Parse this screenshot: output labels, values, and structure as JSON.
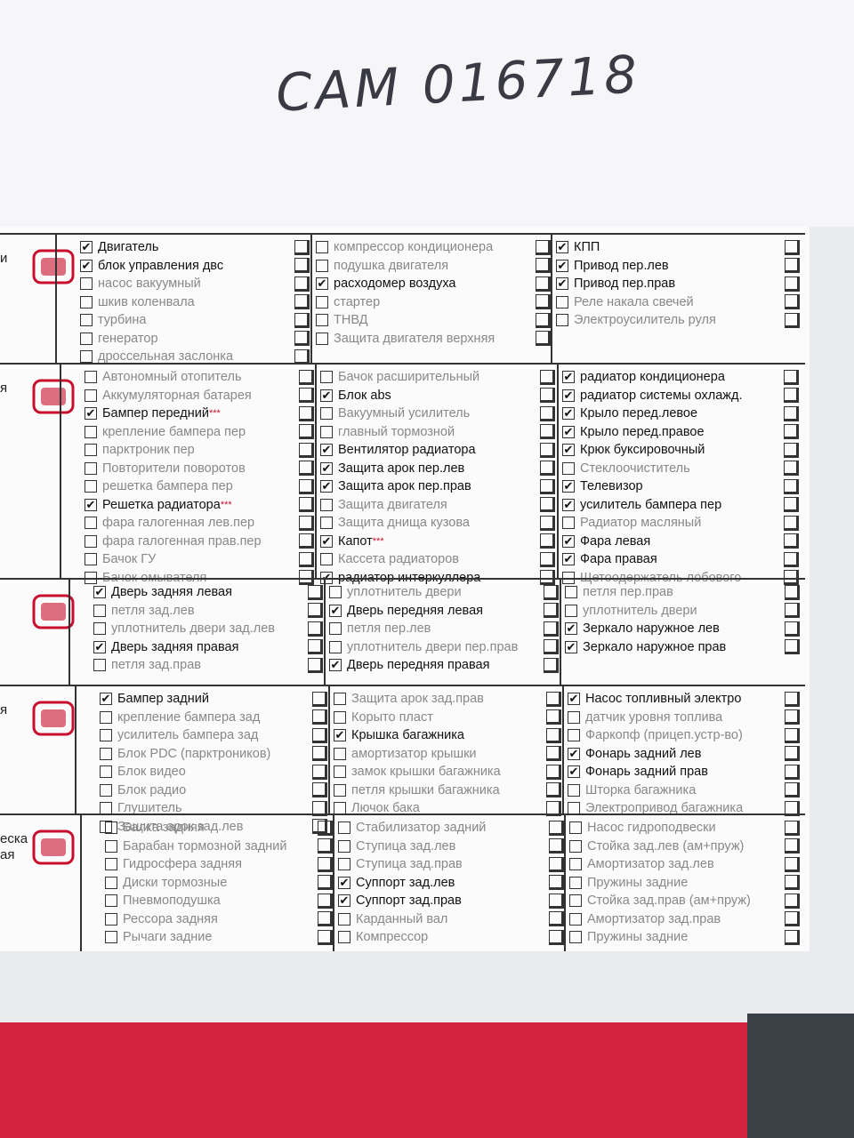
{
  "header": {
    "handwritten": "CAM 016718"
  },
  "sections": [
    {
      "labels": [
        "и"
      ],
      "columns": [
        [
          {
            "text": "Двигатель",
            "checked": true
          },
          {
            "text": "блок управления двс",
            "checked": true
          },
          {
            "text": "насос вакуумный",
            "checked": false
          },
          {
            "text": "шкив коленвала",
            "checked": false
          },
          {
            "text": "турбина",
            "checked": false
          },
          {
            "text": "генератор",
            "checked": false
          },
          {
            "text": "дроссельная заслонка",
            "checked": false
          }
        ],
        [
          {
            "text": "компрессор кондиционера",
            "checked": false
          },
          {
            "text": "подушка двигателя",
            "checked": false
          },
          {
            "text": "расходомер воздуха",
            "checked": true
          },
          {
            "text": "стартер",
            "checked": false
          },
          {
            "text": "ТНВД",
            "checked": false
          },
          {
            "text": "Защита двигателя верхняя",
            "checked": false
          }
        ],
        [
          {
            "text": "КПП",
            "checked": true
          },
          {
            "text": "Привод пер.лев",
            "checked": true
          },
          {
            "text": "Привод пер.прав",
            "checked": true
          },
          {
            "text": "Реле накала свечей",
            "checked": false
          },
          {
            "text": "Электроусилитель руля",
            "checked": false
          }
        ]
      ]
    },
    {
      "labels": [
        "я"
      ],
      "columns": [
        [
          {
            "text": "Автономный отопитель",
            "checked": false
          },
          {
            "text": "Аккумуляторная батарея",
            "checked": false
          },
          {
            "text": "Бампер передний",
            "note": "***",
            "checked": true
          },
          {
            "text": "крепление бампера пер",
            "checked": false
          },
          {
            "text": "парктроник пер",
            "checked": false
          },
          {
            "text": "Повторители поворотов",
            "checked": false
          },
          {
            "text": "решетка бампера пер",
            "checked": false
          },
          {
            "text": "Решетка радиатора",
            "note": "***",
            "checked": true
          },
          {
            "text": "фара галогенная лев.пер",
            "checked": false
          },
          {
            "text": "фара галогенная прав.пер",
            "checked": false
          },
          {
            "text": "Бачок ГУ",
            "checked": false
          },
          {
            "text": "Бачок омывателя",
            "checked": false
          }
        ],
        [
          {
            "text": "Бачок расширительный",
            "checked": false
          },
          {
            "text": "Блок abs",
            "checked": true
          },
          {
            "text": "Вакуумный усилитель",
            "checked": false
          },
          {
            "text": "главный тормозной",
            "checked": false
          },
          {
            "text": "Вентилятор радиатора",
            "checked": true
          },
          {
            "text": "Защита арок пер.лев",
            "checked": true
          },
          {
            "text": "Защита арок пер.прав",
            "checked": true
          },
          {
            "text": "Защита двигателя",
            "checked": false
          },
          {
            "text": "Защита днища кузова",
            "checked": false
          },
          {
            "text": "Капот",
            "note": "***",
            "checked": true
          },
          {
            "text": "Кассета радиаторов",
            "checked": false
          },
          {
            "text": "радиатор интеркуллера",
            "checked": true
          }
        ],
        [
          {
            "text": "радиатор кондиционера",
            "checked": true
          },
          {
            "text": "радиатор системы охлажд.",
            "checked": true
          },
          {
            "text": "Крыло перед.левое",
            "checked": true
          },
          {
            "text": "Крыло перед.правое",
            "checked": true
          },
          {
            "text": "Крюк буксировочный",
            "checked": true
          },
          {
            "text": "Стеклоочиститель",
            "checked": false
          },
          {
            "text": "Телевизор",
            "checked": true
          },
          {
            "text": "усилитель бампера пер",
            "checked": true
          },
          {
            "text": "Радиатор масляный",
            "checked": false
          },
          {
            "text": "Фара левая",
            "checked": true
          },
          {
            "text": "Фара правая",
            "checked": true
          },
          {
            "text": "Щетоодержатель лобового",
            "checked": false
          }
        ]
      ]
    },
    {
      "columns": [
        [
          {
            "text": "Дверь задняя левая",
            "checked": true
          },
          {
            "text": "петля зад.лев",
            "checked": false
          },
          {
            "text": "уплотнитель двери зад.лев",
            "checked": false
          },
          {
            "text": "Дверь задняя правая",
            "checked": true
          },
          {
            "text": "петля зад.прав",
            "checked": false
          }
        ],
        [
          {
            "text": "уплотнитель двери",
            "checked": false
          },
          {
            "text": "Дверь передняя левая",
            "checked": true
          },
          {
            "text": "петля пер.лев",
            "checked": false
          },
          {
            "text": "уплотнитель двери пер.прав",
            "checked": false
          },
          {
            "text": "Дверь передняя правая",
            "checked": true
          }
        ],
        [
          {
            "text": "петля пер.прав",
            "checked": false
          },
          {
            "text": "уплотнитель двери",
            "checked": false
          },
          {
            "text": "Зеркало наружное лев",
            "checked": true
          },
          {
            "text": "Зеркало наружное прав",
            "checked": true
          }
        ]
      ]
    },
    {
      "labels": [
        "я"
      ],
      "columns": [
        [
          {
            "text": "Бампер задний",
            "checked": true
          },
          {
            "text": "крепление бампера зад",
            "checked": false
          },
          {
            "text": "усилитель бампера зад",
            "checked": false
          },
          {
            "text": "Блок PDC (парктроников)",
            "checked": false
          },
          {
            "text": "Блок видео",
            "checked": false
          },
          {
            "text": "Блок радио",
            "checked": false
          },
          {
            "text": "Глушитель",
            "checked": false
          },
          {
            "text": "Защита арок зад.лев",
            "checked": false
          }
        ],
        [
          {
            "text": "Защита арок зад.прав",
            "checked": false
          },
          {
            "text": "Корыто пласт",
            "checked": false
          },
          {
            "text": "Крышка багажника",
            "checked": true
          },
          {
            "text": "амортизатор крышки",
            "checked": false
          },
          {
            "text": "замок крышки багажника",
            "checked": false
          },
          {
            "text": "петля крышки багажника",
            "checked": false
          },
          {
            "text": "Лючок бака",
            "checked": false
          }
        ],
        [
          {
            "text": "Насос топливный электро",
            "checked": true
          },
          {
            "text": "датчик уровня топлива",
            "checked": false
          },
          {
            "text": "Фаркопф (прицеп.устр-во)",
            "checked": false
          },
          {
            "text": "Фонарь задний лев",
            "checked": true
          },
          {
            "text": "Фонарь задний прав",
            "checked": true
          },
          {
            "text": "Шторка багажника",
            "checked": false
          },
          {
            "text": "Электропривод багажника",
            "checked": false
          }
        ]
      ]
    },
    {
      "labels": [
        "еска",
        "ая"
      ],
      "columns": [
        [
          {
            "text": "Балка задняя",
            "checked": false
          },
          {
            "text": "Барабан тормозной задний",
            "checked": false
          },
          {
            "text": "Гидросфера задняя",
            "checked": false
          },
          {
            "text": "Диски тормозные",
            "checked": false
          },
          {
            "text": "Пневмоподушка",
            "checked": false
          },
          {
            "text": "Рессора задняя",
            "checked": false
          },
          {
            "text": "Рычаги задние",
            "checked": false
          }
        ],
        [
          {
            "text": "Стабилизатор задний",
            "checked": false
          },
          {
            "text": "Ступица зад.лев",
            "checked": false
          },
          {
            "text": "Ступица зад.прав",
            "checked": false
          },
          {
            "text": "Суппорт зад.лев",
            "checked": true
          },
          {
            "text": "Суппорт зад.прав",
            "checked": true
          },
          {
            "text": "Карданный вал",
            "checked": false
          },
          {
            "text": "Компрессор",
            "checked": false
          }
        ],
        [
          {
            "text": "Насос гидроподвески",
            "checked": false
          },
          {
            "text": "Стойка зад.лев (ам+пруж)",
            "checked": false
          },
          {
            "text": "Амортизатор зад.лев",
            "checked": false
          },
          {
            "text": "Пружины задние",
            "checked": false
          },
          {
            "text": "Стойка зад.прав (ам+пруж)",
            "checked": false
          },
          {
            "text": "Амортизатор зад.прав",
            "checked": false
          },
          {
            "text": "Пружины задние",
            "checked": false
          }
        ]
      ]
    }
  ]
}
